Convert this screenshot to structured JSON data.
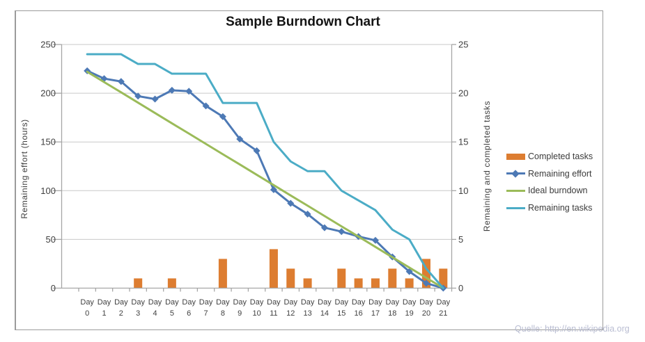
{
  "title": "Sample Burndown Chart",
  "watermark": "Quelle: http://en.wikipedia.org",
  "legend": {
    "position": "right",
    "entries": [
      "Completed tasks",
      "Remaining effort",
      "Ideal burndown",
      "Remaining tasks"
    ]
  },
  "colors": {
    "completed_tasks": "#dd7d31",
    "remaining_effort": "#4d79b5",
    "ideal_burndown": "#9bbb59",
    "remaining_tasks": "#4bacc6",
    "gridline": "#c9c9c9",
    "axis": "#a6a6a6",
    "tick_text": "#3f3f3f",
    "watermark_text": "#b9bdd2"
  },
  "chart_data": {
    "type": "bar",
    "subtype": "combo-bar-and-lines",
    "title": "Sample Burndown Chart",
    "grid": "horizontal",
    "legend_position": "right",
    "categories": [
      "Day 0",
      "Day 1",
      "Day 2",
      "Day 3",
      "Day 4",
      "Day 5",
      "Day 6",
      "Day 7",
      "Day 8",
      "Day 9",
      "Day 10",
      "Day 11",
      "Day 12",
      "Day 13",
      "Day 14",
      "Day 15",
      "Day 16",
      "Day 17",
      "Day 18",
      "Day 19",
      "Day 20",
      "Day 21"
    ],
    "left_axis": {
      "label": "Remaining effort (hours)",
      "range": [
        0,
        250
      ],
      "tick_step": 50,
      "ticks": [
        0,
        50,
        100,
        150,
        200,
        250
      ]
    },
    "right_axis": {
      "label": "Remaining and completed tasks",
      "range": [
        0,
        25
      ],
      "tick_step": 5,
      "ticks": [
        0,
        5,
        10,
        15,
        20,
        25
      ]
    },
    "series": [
      {
        "name": "Completed tasks",
        "type": "bar",
        "axis": "right",
        "color": "#dd7d31",
        "values": [
          0,
          0,
          0,
          1,
          0,
          1,
          0,
          0,
          3,
          0,
          0,
          4,
          2,
          1,
          0,
          2,
          1,
          1,
          2,
          1,
          3,
          2
        ]
      },
      {
        "name": "Remaining effort",
        "type": "line",
        "marker": "diamond",
        "axis": "left",
        "color": "#4d79b5",
        "values": [
          223,
          215,
          212,
          197,
          194,
          203,
          202,
          187,
          176,
          153,
          141,
          101,
          87,
          76,
          62,
          58,
          53,
          49,
          32,
          17,
          5,
          0
        ]
      },
      {
        "name": "Ideal burndown",
        "type": "line",
        "marker": "none",
        "axis": "left",
        "color": "#9bbb59",
        "values": [
          222,
          211.4,
          200.9,
          190.3,
          179.7,
          169.1,
          158.6,
          148,
          137.4,
          126.9,
          116.3,
          105.7,
          95.1,
          84.6,
          74,
          63.4,
          52.9,
          42.3,
          31.7,
          21.1,
          10.6,
          0
        ]
      },
      {
        "name": "Remaining tasks",
        "type": "line",
        "marker": "none",
        "axis": "right",
        "color": "#4bacc6",
        "values": [
          24,
          24,
          24,
          23,
          23,
          22,
          22,
          22,
          19,
          19,
          19,
          15,
          13,
          12,
          12,
          10,
          9,
          8,
          6,
          5,
          2,
          0
        ]
      }
    ]
  }
}
